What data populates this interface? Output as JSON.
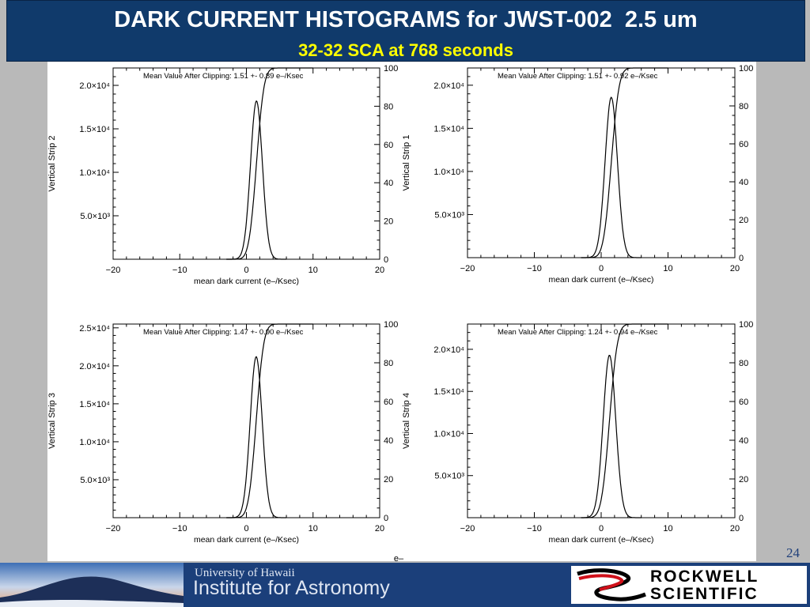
{
  "header": {
    "title": "DARK CURRENT HISTOGRAMS for JWST-002  2.5 um",
    "subtitle": "32-32 SCA at 768 seconds"
  },
  "page_number": "24",
  "stray_label": "e–",
  "footer": {
    "uh_text": "University of Hawaii",
    "ifa_text": "Institute for Astronomy",
    "rs_word1": "ROCKWELL",
    "rs_word2": "SCIENTIFIC"
  },
  "colors": {
    "header_bg": "#103a6b",
    "subtitle": "#ffff00",
    "footer_bg": "#1b3f7a"
  },
  "chart_data": [
    {
      "type": "line",
      "ylabel": "Vertical Strip 2",
      "xlabel": "mean dark current (e–/Ksec)",
      "annotation": "Mean Value After Clipping:  1.51 +- 0.89 e–/Ksec",
      "xlim": [
        -20,
        20
      ],
      "x_ticks": [
        -20,
        -10,
        0,
        10,
        20
      ],
      "ylim": [
        0,
        22000
      ],
      "y_ticks": [
        5000,
        10000,
        15000,
        20000
      ],
      "y_tick_labels": [
        "5.0×10³",
        "1.0×10⁴",
        "1.5×10⁴",
        "2.0×10⁴"
      ],
      "y2lim": [
        0,
        100
      ],
      "y2_ticks": [
        0,
        20,
        40,
        60,
        80,
        100
      ],
      "histogram": {
        "mean": 1.51,
        "sigma": 0.89,
        "peak": 18200
      },
      "cumulative": {
        "mean": 1.51,
        "sigma": 0.89
      }
    },
    {
      "type": "line",
      "ylabel": "Vertical Strip 1",
      "xlabel": "mean dark current (e–/Ksec)",
      "annotation": "Mean Value After Clipping:  1.51 +- 0.92 e–/Ksec",
      "xlim": [
        -20,
        20
      ],
      "x_ticks": [
        -20,
        -10,
        0,
        10,
        20
      ],
      "ylim": [
        0,
        22000
      ],
      "y_ticks": [
        5000,
        10000,
        15000,
        20000
      ],
      "y_tick_labels": [
        "5.0×10³",
        "1.0×10⁴",
        "1.5×10⁴",
        "2.0×10⁴"
      ],
      "y2lim": [
        0,
        100
      ],
      "y2_ticks": [
        0,
        20,
        40,
        60,
        80,
        100
      ],
      "histogram": {
        "mean": 1.51,
        "sigma": 0.92,
        "peak": 18600
      },
      "cumulative": {
        "mean": 1.51,
        "sigma": 0.92
      }
    },
    {
      "type": "line",
      "ylabel": "Vertical Strip 3",
      "xlabel": "mean dark current (e–/Ksec)",
      "annotation": "Mean Value After Clipping:  1.47 +- 0.90 e–/Ksec",
      "xlim": [
        -20,
        20
      ],
      "x_ticks": [
        -20,
        -10,
        0,
        10,
        20
      ],
      "ylim": [
        0,
        25500
      ],
      "y_ticks": [
        5000,
        10000,
        15000,
        20000,
        25000
      ],
      "y_tick_labels": [
        "5.0×10³",
        "1.0×10⁴",
        "1.5×10⁴",
        "2.0×10⁴",
        "2.5×10⁴"
      ],
      "y2lim": [
        0,
        100
      ],
      "y2_ticks": [
        0,
        20,
        40,
        60,
        80,
        100
      ],
      "histogram": {
        "mean": 1.47,
        "sigma": 0.9,
        "peak": 21200
      },
      "cumulative": {
        "mean": 1.47,
        "sigma": 0.9
      }
    },
    {
      "type": "line",
      "ylabel": "Vertical Strip 4",
      "xlabel": "mean dark current (e–/Ksec)",
      "annotation": "Mean Value After Clipping:  1.24 +- 0.94 e–/Ksec",
      "xlim": [
        -20,
        20
      ],
      "x_ticks": [
        -20,
        -10,
        0,
        10,
        20
      ],
      "ylim": [
        0,
        23000
      ],
      "y_ticks": [
        5000,
        10000,
        15000,
        20000
      ],
      "y_tick_labels": [
        "5.0×10³",
        "1.0×10⁴",
        "1.5×10⁴",
        "2.0×10⁴"
      ],
      "y2lim": [
        0,
        100
      ],
      "y2_ticks": [
        0,
        20,
        40,
        60,
        80,
        100
      ],
      "histogram": {
        "mean": 1.24,
        "sigma": 0.94,
        "peak": 19300
      },
      "cumulative": {
        "mean": 1.24,
        "sigma": 0.94
      }
    }
  ]
}
